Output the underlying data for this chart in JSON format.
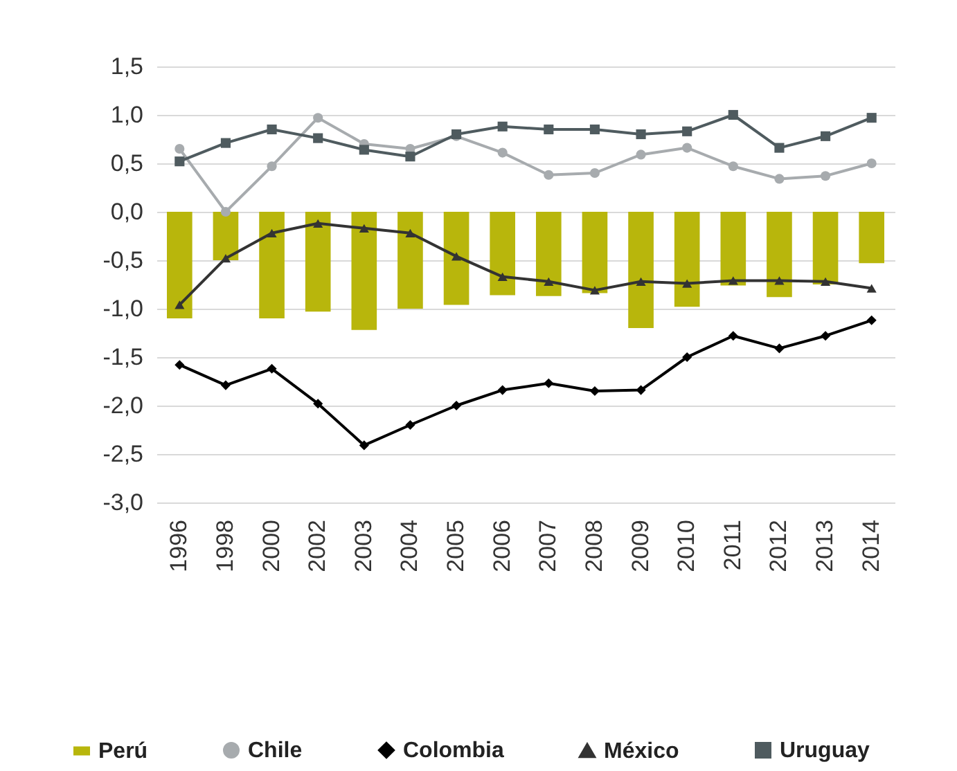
{
  "chart_data": {
    "type": "bar",
    "categories": [
      "1996",
      "1998",
      "2000",
      "2002",
      "2003",
      "2004",
      "2005",
      "2006",
      "2007",
      "2008",
      "2009",
      "2010",
      "2011",
      "2012",
      "2013",
      "2014"
    ],
    "series": [
      {
        "name": "Perú",
        "type": "bar",
        "color": "#b8b60c",
        "values": [
          -1.1,
          -0.5,
          -1.1,
          -1.03,
          -1.22,
          -1.0,
          -0.96,
          -0.86,
          -0.87,
          -0.84,
          -1.2,
          -0.98,
          -0.76,
          -0.88,
          -0.75,
          -0.53
        ]
      },
      {
        "name": "Chile",
        "type": "line",
        "color": "#a7abae",
        "marker": "circle",
        "values": [
          0.65,
          0.0,
          0.47,
          0.97,
          0.7,
          0.65,
          0.78,
          0.61,
          0.38,
          0.4,
          0.59,
          0.66,
          0.47,
          0.34,
          0.37,
          0.5
        ]
      },
      {
        "name": "Colombia",
        "type": "line",
        "color": "#000000",
        "marker": "diamond",
        "values": [
          -1.58,
          -1.79,
          -1.62,
          -1.98,
          -2.41,
          -2.2,
          -2.0,
          -1.84,
          -1.77,
          -1.85,
          -1.84,
          -1.5,
          -1.28,
          -1.41,
          -1.28,
          -1.12
        ]
      },
      {
        "name": "México",
        "type": "line",
        "color": "#333333",
        "marker": "triangle",
        "values": [
          -0.96,
          -0.48,
          -0.22,
          -0.12,
          -0.17,
          -0.22,
          -0.46,
          -0.67,
          -0.72,
          -0.81,
          -0.72,
          -0.74,
          -0.71,
          -0.71,
          -0.72,
          -0.79
        ]
      },
      {
        "name": "Uruguay",
        "type": "line",
        "color": "#4f5b5f",
        "marker": "square",
        "values": [
          0.52,
          0.71,
          0.85,
          0.76,
          0.64,
          0.57,
          0.8,
          0.88,
          0.85,
          0.85,
          0.8,
          0.83,
          1.0,
          0.66,
          0.78,
          0.97
        ]
      }
    ],
    "ylim": [
      -3.0,
      1.5
    ],
    "yticks": [
      {
        "value": -3.0,
        "label": "-3,0"
      },
      {
        "value": -2.5,
        "label": "-2,5"
      },
      {
        "value": -2.0,
        "label": "-2,0"
      },
      {
        "value": -1.5,
        "label": "-1,5"
      },
      {
        "value": -1.0,
        "label": "-1,0"
      },
      {
        "value": -0.5,
        "label": "-0,5"
      },
      {
        "value": 0.0,
        "label": "0,0"
      },
      {
        "value": 0.5,
        "label": "0,5"
      },
      {
        "value": 1.0,
        "label": "1,0"
      },
      {
        "value": 1.5,
        "label": "1,5"
      }
    ],
    "grid": "y",
    "legend": "bottom"
  }
}
